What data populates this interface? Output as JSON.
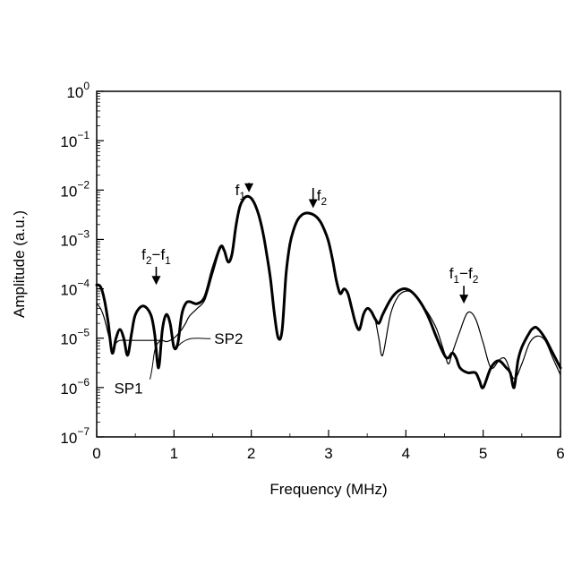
{
  "chart_data": {
    "type": "line",
    "title": "",
    "xlabel": "Frequency (MHz)",
    "ylabel": "Amplitude (a.u.)",
    "xlim": [
      0,
      6
    ],
    "ylim_log10": [
      -7,
      0
    ],
    "y_scale": "log",
    "grid": false,
    "legend": "none",
    "x_ticks": [
      "0",
      "1",
      "2",
      "3",
      "4",
      "5",
      "6"
    ],
    "y_ticks": [
      {
        "base": "10",
        "exp": "0",
        "value": 1
      },
      {
        "base": "10",
        "exp": "−1",
        "value": 0.1
      },
      {
        "base": "10",
        "exp": "−2",
        "value": 0.01
      },
      {
        "base": "10",
        "exp": "−3",
        "value": 0.001
      },
      {
        "base": "10",
        "exp": "−4",
        "value": 0.0001
      },
      {
        "base": "10",
        "exp": "−5",
        "value": 1e-05
      },
      {
        "base": "10",
        "exp": "−6",
        "value": 1e-06
      },
      {
        "base": "10",
        "exp": "−7",
        "value": 1e-07
      }
    ],
    "series": [
      {
        "name": "SP1",
        "color": "#000000",
        "style": "thick",
        "x": [
          0,
          0.05,
          0.1,
          0.15,
          0.2,
          0.25,
          0.3,
          0.35,
          0.4,
          0.45,
          0.5,
          0.6,
          0.7,
          0.75,
          0.8,
          0.85,
          0.9,
          0.95,
          1.0,
          1.05,
          1.1,
          1.15,
          1.2,
          1.3,
          1.4,
          1.5,
          1.6,
          1.65,
          1.7,
          1.75,
          1.8,
          1.85,
          1.9,
          1.95,
          2.0,
          2.05,
          2.1,
          2.15,
          2.2,
          2.25,
          2.3,
          2.35,
          2.4,
          2.45,
          2.5,
          2.55,
          2.6,
          2.65,
          2.7,
          2.75,
          2.8,
          2.85,
          2.9,
          2.95,
          3.0,
          3.05,
          3.1,
          3.15,
          3.2,
          3.25,
          3.3,
          3.35,
          3.4,
          3.45,
          3.5,
          3.55,
          3.6,
          3.65,
          3.7,
          3.8,
          3.9,
          4.0,
          4.1,
          4.2,
          4.3,
          4.4,
          4.5,
          4.55,
          4.6,
          4.65,
          4.7,
          4.8,
          4.9,
          4.95,
          5.0,
          5.1,
          5.2,
          5.3,
          5.35,
          5.4,
          5.45,
          5.5,
          5.6,
          5.65,
          5.7,
          5.8,
          5.9,
          6.0
        ],
        "y": [
          0.00012,
          0.00011,
          6e-05,
          2e-05,
          5e-06,
          1e-05,
          1.5e-05,
          1e-05,
          4.5e-06,
          1.2e-05,
          3e-05,
          4.5e-05,
          3e-05,
          1.2e-05,
          2.5e-06,
          1.5e-05,
          3e-05,
          2e-05,
          6.5e-06,
          8e-06,
          3e-05,
          5e-05,
          5.5e-05,
          5e-05,
          7e-05,
          0.00025,
          0.0007,
          0.0006,
          0.00035,
          0.0005,
          0.0018,
          0.0045,
          0.0066,
          0.0075,
          0.0068,
          0.005,
          0.003,
          0.0014,
          0.0005,
          0.00015,
          3e-05,
          1e-05,
          1.5e-05,
          0.0002,
          0.0008,
          0.0016,
          0.0025,
          0.0031,
          0.0034,
          0.0034,
          0.0032,
          0.0028,
          0.0022,
          0.0015,
          0.0009,
          0.0004,
          0.00015,
          8e-05,
          0.0001,
          8e-05,
          4e-05,
          2e-05,
          1.5e-05,
          3e-05,
          4e-05,
          3.5e-05,
          2.5e-05,
          2e-05,
          3e-05,
          6e-05,
          9e-05,
          0.0001,
          8e-05,
          5e-05,
          2.5e-05,
          1e-05,
          4.5e-06,
          4e-06,
          5e-06,
          4e-06,
          2.5e-06,
          2e-06,
          2e-06,
          1.4e-06,
          1e-06,
          2.5e-06,
          3.5e-06,
          2.5e-06,
          2e-06,
          1e-06,
          3.5e-06,
          6.5e-06,
          1.3e-05,
          1.6e-05,
          1.6e-05,
          1e-05,
          5e-06,
          2.5e-06
        ]
      },
      {
        "name": "SP2",
        "color": "#000000",
        "style": "thin",
        "x": [
          0,
          0.05,
          0.1,
          0.15,
          0.2,
          0.25,
          0.3,
          0.4,
          0.5,
          0.6,
          0.7,
          0.8,
          0.85,
          0.9,
          0.95,
          1.0,
          1.05,
          1.1,
          1.15,
          1.2,
          1.3,
          1.4,
          1.5,
          1.6,
          1.65,
          1.7,
          1.75,
          1.8,
          1.85,
          1.9,
          1.95,
          2.0,
          2.05,
          2.1,
          2.15,
          2.2,
          2.25,
          2.3,
          2.35,
          2.4,
          2.45,
          2.5,
          2.55,
          2.6,
          2.65,
          2.7,
          2.75,
          2.8,
          2.85,
          2.9,
          2.95,
          3.0,
          3.05,
          3.1,
          3.15,
          3.2,
          3.25,
          3.3,
          3.35,
          3.4,
          3.45,
          3.5,
          3.55,
          3.6,
          3.65,
          3.7,
          3.8,
          3.9,
          4.0,
          4.1,
          4.2,
          4.3,
          4.4,
          4.5,
          4.55,
          4.6,
          4.7,
          4.8,
          4.9,
          5.0,
          5.1,
          5.2,
          5.25,
          5.3,
          5.4,
          5.5,
          5.6,
          5.7,
          5.8,
          5.9,
          6.0
        ],
        "y": [
          5e-05,
          4e-05,
          2.5e-05,
          1.2e-05,
          6e-06,
          8e-06,
          9e-06,
          9e-06,
          9e-06,
          9e-06,
          9e-06,
          9e-06,
          9e-06,
          8.5e-06,
          9e-06,
          1e-05,
          1.2e-05,
          1.5e-05,
          2e-05,
          2.8e-05,
          4e-05,
          6e-05,
          0.0002,
          0.00065,
          0.0006,
          0.00035,
          0.0005,
          0.0018,
          0.0045,
          0.0066,
          0.0075,
          0.0068,
          0.005,
          0.003,
          0.0014,
          0.0005,
          0.00015,
          3e-05,
          1e-05,
          1.5e-05,
          0.0002,
          0.0008,
          0.0016,
          0.0025,
          0.0031,
          0.0034,
          0.0034,
          0.0032,
          0.0028,
          0.0022,
          0.0015,
          0.0009,
          0.0004,
          0.00015,
          8e-05,
          0.0001,
          8e-05,
          4e-05,
          2e-05,
          1.5e-05,
          3e-05,
          4e-05,
          3.5e-05,
          2.5e-05,
          1e-05,
          4.5e-06,
          3e-05,
          7e-05,
          9e-05,
          8e-05,
          5e-05,
          3e-05,
          1.5e-05,
          5e-06,
          3e-06,
          5e-06,
          1.4e-05,
          3.3e-05,
          2.5e-05,
          8e-06,
          2.5e-06,
          3.5e-06,
          4e-06,
          3.5e-06,
          1.5e-06,
          3e-06,
          8e-06,
          1.1e-05,
          9e-06,
          4e-06,
          1.8e-06
        ]
      }
    ],
    "annotations": [
      {
        "id": "f1",
        "label": "f",
        "sub": "1",
        "x": 1.97,
        "arrow_from_y": 0.014,
        "arrow_to_y": 0.009
      },
      {
        "id": "f2",
        "label": "f",
        "sub": "2",
        "x": 2.8,
        "arrow_from_y": 0.011,
        "arrow_to_y": 0.0043
      },
      {
        "id": "f2-f1",
        "label": "f",
        "sub": "2",
        "rest": "−f",
        "sub2": "1",
        "x": 0.77,
        "arrow_from_y": 0.00028,
        "arrow_to_y": 0.00012
      },
      {
        "id": "f1-f2",
        "label": "f",
        "sub": "1",
        "rest": "−f",
        "sub2": "2",
        "x": 4.75,
        "arrow_from_y": 0.000115,
        "arrow_to_y": 5e-05
      }
    ],
    "series_labels": [
      {
        "text": "SP2",
        "x_data": 1.15,
        "y_data": 9e-06
      },
      {
        "text": "SP1",
        "x_data": 0.55,
        "y_data": 7.5e-07
      }
    ]
  }
}
